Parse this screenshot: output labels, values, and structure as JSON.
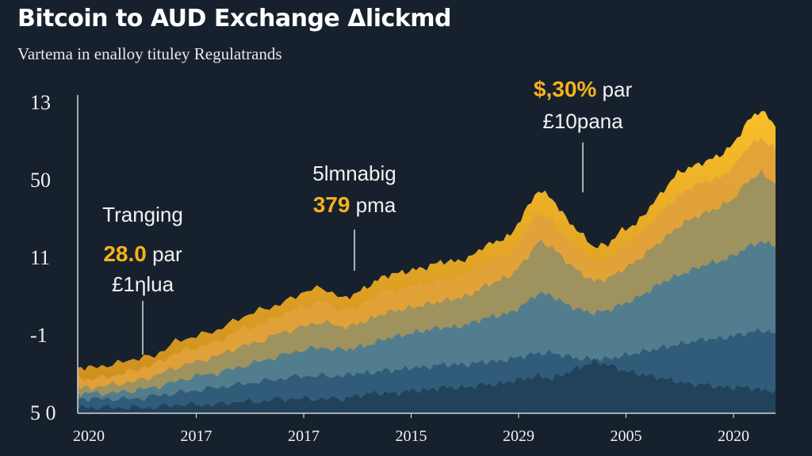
{
  "chart_data": {
    "type": "area",
    "title": "Bitcoin to AUD Exchange Δlickmd",
    "subtitle": "Vartema in enalloy tituley Regulatrands",
    "xlabel": "",
    "ylabel": "",
    "x_tick_labels": [
      "2020",
      "2017",
      "2017",
      "2015",
      "2029",
      "2005",
      "2020"
    ],
    "y_tick_labels": [
      "13",
      "50",
      "11",
      "-1",
      "5 0"
    ],
    "grid": false,
    "legend": "none",
    "x": [
      0,
      0.02,
      0.05,
      0.08,
      0.11,
      0.14,
      0.17,
      0.2,
      0.23,
      0.26,
      0.29,
      0.32,
      0.35,
      0.38,
      0.4,
      0.42,
      0.44,
      0.46,
      0.48,
      0.5,
      0.52,
      0.54,
      0.56,
      0.58,
      0.6,
      0.62,
      0.64,
      0.66,
      0.68,
      0.7,
      0.72,
      0.74,
      0.76,
      0.78,
      0.8,
      0.82,
      0.84,
      0.86,
      0.88,
      0.9,
      0.92,
      0.94,
      0.96,
      0.98,
      1.0
    ],
    "series": [
      {
        "values": [
          0.16,
          0.16,
          0.17,
          0.19,
          0.2,
          0.25,
          0.27,
          0.29,
          0.33,
          0.36,
          0.38,
          0.42,
          0.44,
          0.4,
          0.42,
          0.45,
          0.48,
          0.49,
          0.5,
          0.51,
          0.53,
          0.53,
          0.54,
          0.58,
          0.6,
          0.62,
          0.7,
          0.78,
          0.75,
          0.68,
          0.63,
          0.58,
          0.59,
          0.64,
          0.66,
          0.72,
          0.78,
          0.84,
          0.86,
          0.88,
          0.9,
          0.94,
          1.02,
          1.06,
          1.0
        ]
      },
      {
        "values": [
          0.12,
          0.12,
          0.13,
          0.15,
          0.17,
          0.21,
          0.23,
          0.25,
          0.29,
          0.31,
          0.34,
          0.37,
          0.39,
          0.36,
          0.37,
          0.4,
          0.43,
          0.43,
          0.45,
          0.45,
          0.47,
          0.47,
          0.49,
          0.52,
          0.54,
          0.56,
          0.63,
          0.7,
          0.67,
          0.61,
          0.57,
          0.53,
          0.54,
          0.58,
          0.61,
          0.66,
          0.71,
          0.76,
          0.79,
          0.81,
          0.82,
          0.86,
          0.93,
          0.96,
          0.92
        ]
      },
      {
        "values": [
          0.09,
          0.09,
          0.1,
          0.11,
          0.13,
          0.16,
          0.18,
          0.2,
          0.23,
          0.25,
          0.28,
          0.3,
          0.32,
          0.3,
          0.31,
          0.33,
          0.35,
          0.36,
          0.37,
          0.38,
          0.39,
          0.4,
          0.41,
          0.44,
          0.46,
          0.48,
          0.53,
          0.6,
          0.58,
          0.53,
          0.49,
          0.46,
          0.47,
          0.5,
          0.53,
          0.57,
          0.61,
          0.65,
          0.68,
          0.7,
          0.72,
          0.75,
          0.81,
          0.84,
          0.8
        ]
      },
      {
        "values": [
          0.07,
          0.07,
          0.07,
          0.08,
          0.09,
          0.11,
          0.13,
          0.14,
          0.16,
          0.18,
          0.2,
          0.22,
          0.23,
          0.22,
          0.23,
          0.24,
          0.26,
          0.27,
          0.28,
          0.29,
          0.3,
          0.3,
          0.31,
          0.33,
          0.34,
          0.35,
          0.38,
          0.42,
          0.41,
          0.38,
          0.36,
          0.35,
          0.36,
          0.38,
          0.4,
          0.43,
          0.46,
          0.48,
          0.5,
          0.52,
          0.53,
          0.55,
          0.58,
          0.6,
          0.58
        ]
      },
      {
        "values": [
          0.05,
          0.05,
          0.05,
          0.05,
          0.06,
          0.07,
          0.08,
          0.09,
          0.1,
          0.11,
          0.12,
          0.13,
          0.13,
          0.13,
          0.14,
          0.14,
          0.15,
          0.15,
          0.16,
          0.16,
          0.17,
          0.17,
          0.17,
          0.18,
          0.18,
          0.19,
          0.2,
          0.21,
          0.21,
          0.2,
          0.19,
          0.19,
          0.19,
          0.2,
          0.21,
          0.22,
          0.23,
          0.24,
          0.25,
          0.26,
          0.26,
          0.27,
          0.28,
          0.29,
          0.28
        ]
      },
      {
        "values": [
          0.02,
          0.02,
          0.02,
          0.02,
          0.02,
          0.03,
          0.03,
          0.03,
          0.04,
          0.04,
          0.05,
          0.05,
          0.05,
          0.05,
          0.06,
          0.07,
          0.07,
          0.07,
          0.08,
          0.08,
          0.09,
          0.09,
          0.09,
          0.1,
          0.1,
          0.11,
          0.12,
          0.13,
          0.12,
          0.14,
          0.16,
          0.18,
          0.17,
          0.15,
          0.14,
          0.13,
          0.12,
          0.11,
          0.1,
          0.1,
          0.09,
          0.09,
          0.09,
          0.08,
          0.08
        ]
      }
    ],
    "series_colors": [
      "#f7b82a",
      "#e0a23a",
      "#9a9160",
      "#4e7c90",
      "#2f5b78",
      "#223f58"
    ],
    "annotations": [
      {
        "line1": "Tranging",
        "value": "28.0",
        "suffix": "par",
        "line3": "£1ηlua",
        "x": 0.09
      },
      {
        "line1": "5lmnabig",
        "value": "379",
        "suffix": "pma",
        "line3": "",
        "x": 0.4
      },
      {
        "line1": "",
        "value": "$,30%",
        "suffix": "par",
        "line3": "£10pana",
        "x": 0.72
      }
    ]
  },
  "colors": {
    "background": "#17212e",
    "accent": "#f6b21a",
    "axis": "#cfd5dc"
  }
}
